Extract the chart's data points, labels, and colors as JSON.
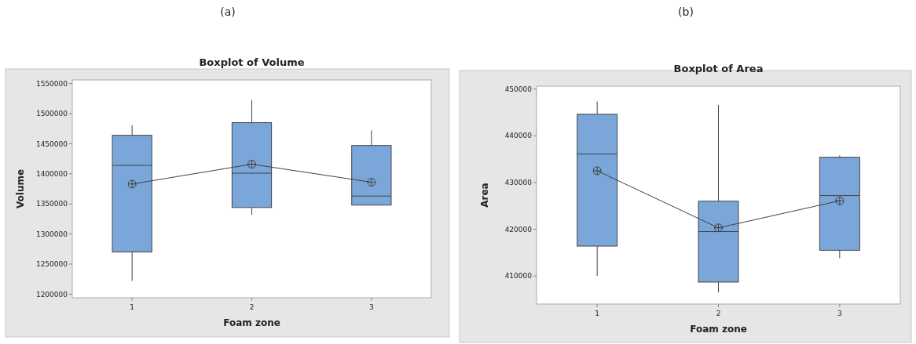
{
  "chart_data": [
    {
      "type": "box",
      "title": "Boxplot of Volume",
      "xlabel": "Foam zone",
      "ylabel": "Volume",
      "annotations": [
        "(a)"
      ],
      "categories": [
        "1",
        "2",
        "3"
      ],
      "ylim": [
        1194000,
        1556000
      ],
      "yticks": [
        1200000,
        1250000,
        1300000,
        1350000,
        1400000,
        1450000,
        1500000,
        1550000
      ],
      "grid": false,
      "boxes": [
        {
          "low": 1222000,
          "q1": 1270000,
          "median": 1414000,
          "q3": 1464000,
          "high": 1481000
        },
        {
          "low": 1332000,
          "q1": 1344000,
          "median": 1401000,
          "q3": 1485000,
          "high": 1523000
        },
        {
          "low": 1348000,
          "q1": 1348000,
          "median": 1363000,
          "q3": 1447000,
          "high": 1472000
        }
      ],
      "series": [
        {
          "type": "line",
          "values": [
            1383000,
            1416000,
            1386000
          ],
          "marker": "circle",
          "color": "#404040"
        }
      ]
    },
    {
      "type": "box",
      "title": "Boxplot of Area",
      "xlabel": "Foam zone",
      "ylabel": "Area",
      "annotations": [
        "(b)"
      ],
      "categories": [
        "1",
        "2",
        "3"
      ],
      "ylim": [
        404000,
        450600
      ],
      "yticks": [
        410000,
        420000,
        430000,
        440000,
        450000
      ],
      "grid": false,
      "boxes": [
        {
          "low": 410000,
          "q1": 416400,
          "median": 436100,
          "q3": 444600,
          "high": 447300
        },
        {
          "low": 406500,
          "q1": 408700,
          "median": 419500,
          "q3": 426000,
          "high": 446600
        },
        {
          "low": 413800,
          "q1": 415500,
          "median": 427200,
          "q3": 435400,
          "high": 435800
        }
      ],
      "series": [
        {
          "type": "line",
          "values": [
            432500,
            420300,
            426100
          ],
          "marker": "circle",
          "color": "#404040"
        }
      ]
    }
  ]
}
